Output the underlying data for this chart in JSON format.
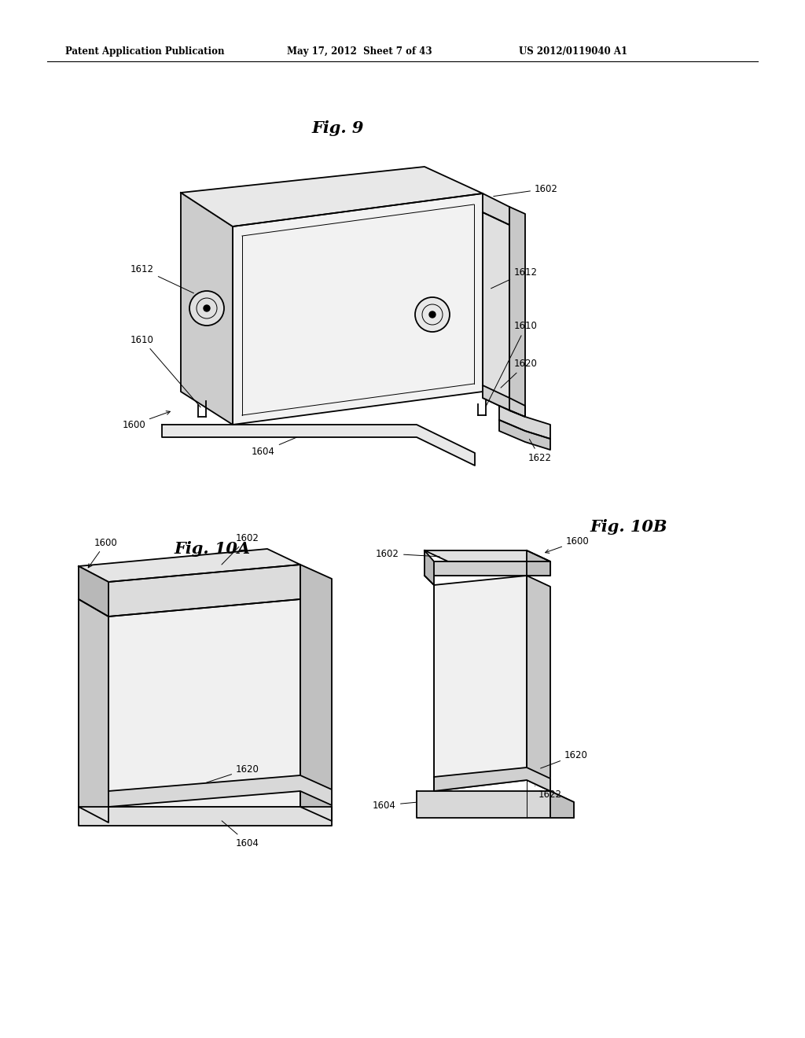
{
  "header_left": "Patent Application Publication",
  "header_mid": "May 17, 2012  Sheet 7 of 43",
  "header_right": "US 2012/0119040 A1",
  "fig9_title": "Fig. 9",
  "fig10a_title": "Fig. 10A",
  "fig10b_title": "Fig. 10B",
  "bg_color": "#ffffff",
  "line_color": "#000000",
  "lw": 1.3,
  "tlw": 0.7,
  "label_fontsize": 8.5,
  "fig_title_fontsize": 15
}
